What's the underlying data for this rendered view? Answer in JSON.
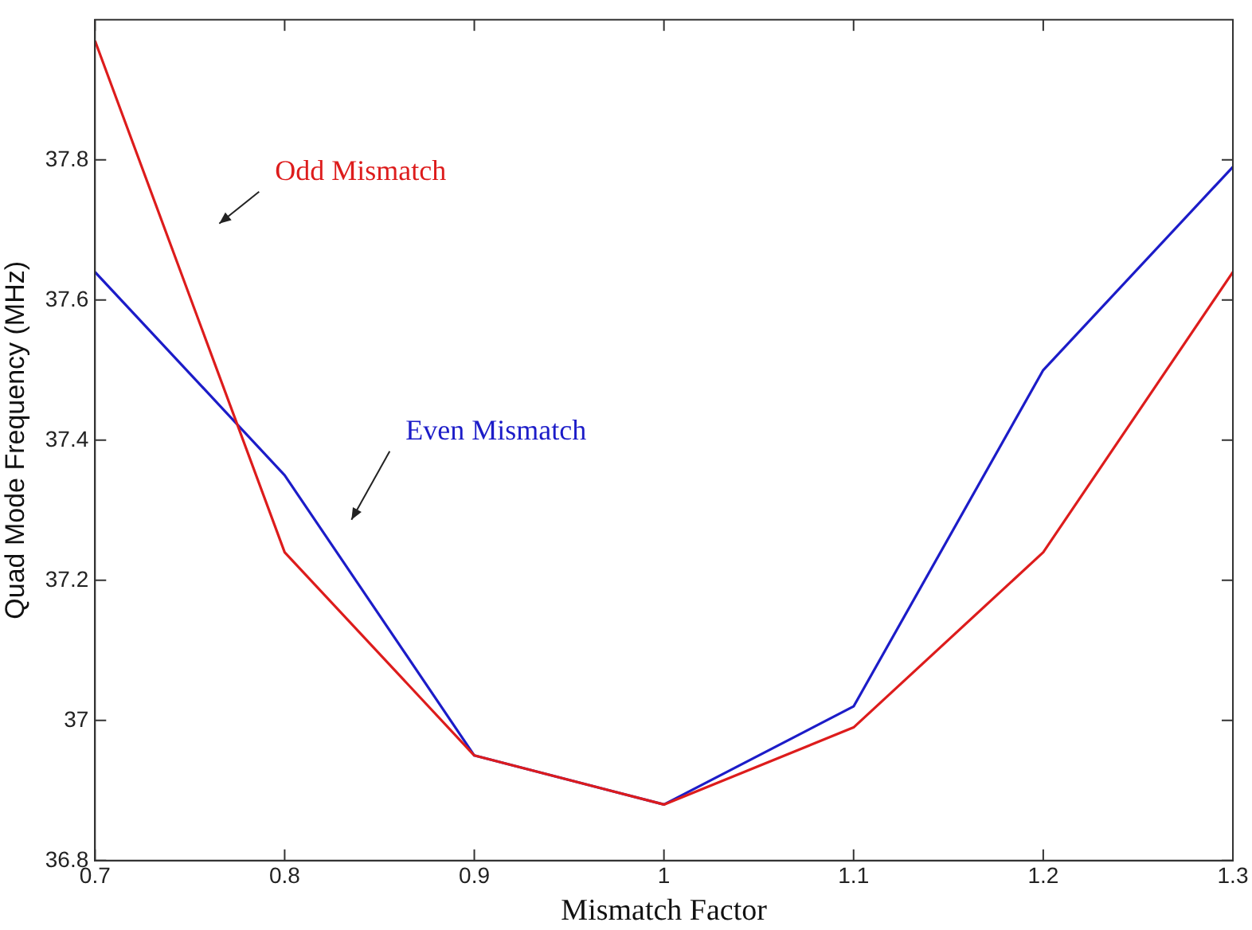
{
  "chart_data": {
    "type": "line",
    "xlabel": "Mismatch Factor",
    "ylabel": "Quad Mode Frequency (MHz)",
    "x": [
      0.7,
      0.8,
      0.9,
      1.0,
      1.1,
      1.2,
      1.3
    ],
    "series": [
      {
        "name": "Odd Mismatch",
        "color": "#dd1c1c",
        "values": [
          37.97,
          37.24,
          36.95,
          36.88,
          36.99,
          37.24,
          37.64
        ]
      },
      {
        "name": "Even Mismatch",
        "color": "#1c1cc8",
        "values": [
          37.64,
          37.35,
          36.95,
          36.88,
          37.02,
          37.5,
          37.79
        ]
      }
    ],
    "xlim": [
      0.7,
      1.3
    ],
    "xticks": [
      0.7,
      0.8,
      0.9,
      1,
      1.1,
      1.2,
      1.3
    ],
    "ylim": [
      36.8,
      38
    ],
    "yticks": [
      36.8,
      37,
      37.2,
      37.4,
      37.6,
      37.8
    ],
    "grid": false,
    "legend": false,
    "marker": "none",
    "line_style": "solid"
  }
}
